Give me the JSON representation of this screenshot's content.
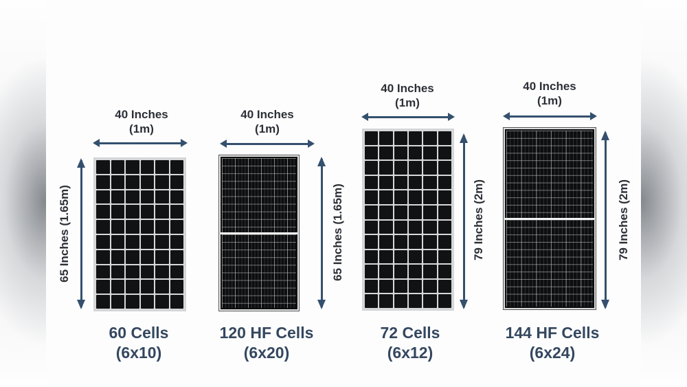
{
  "colors": {
    "arrow": "#34506e",
    "caption_text": "#34475f",
    "dimension_text": "#2b2f36",
    "cell": "#111214",
    "panel_frame": "#cfd1d3"
  },
  "panels": [
    {
      "width_label_line1": "40 Inches",
      "width_label_line2": "(1m)",
      "height_label": "65 Inches (1.65m)",
      "caption_line1": "60 Cells",
      "caption_line2": "(6x10)",
      "type": "mono",
      "columns": 6,
      "rows": 10
    },
    {
      "width_label_line1": "40 Inches",
      "width_label_line2": "(1m)",
      "height_label": "65 Inches (1.65m)",
      "caption_line1": "120 HF Cells",
      "caption_line2": "(6x20)",
      "type": "half-cut",
      "columns": 6,
      "rows": 20
    },
    {
      "width_label_line1": "40 Inches",
      "width_label_line2": "(1m)",
      "height_label": "79 Inches (2m)",
      "caption_line1": "72 Cells",
      "caption_line2": "(6x12)",
      "type": "mono",
      "columns": 6,
      "rows": 12
    },
    {
      "width_label_line1": "40 Inches",
      "width_label_line2": "(1m)",
      "height_label": "79 Inches (2m)",
      "caption_line1": "144 HF Cells",
      "caption_line2": "(6x24)",
      "type": "half-cut",
      "columns": 6,
      "rows": 24
    }
  ]
}
